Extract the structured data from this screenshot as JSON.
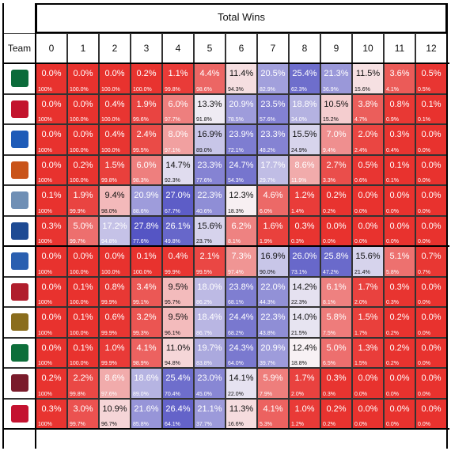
{
  "chart_data": {
    "type": "heatmap",
    "title": "Total Wins",
    "row_header": "Team",
    "columns": [
      "0",
      "1",
      "2",
      "3",
      "4",
      "5",
      "6",
      "7",
      "8",
      "9",
      "10",
      "11",
      "12"
    ],
    "teams": [
      {
        "logo": "ohio-logo-icon",
        "pct": [
          "0.0%",
          "0.0%",
          "0.0%",
          "0.2%",
          "1.1%",
          "4.4%",
          "11.4%",
          "20.5%",
          "25.4%",
          "21.3%",
          "11.5%",
          "3.6%",
          "0.5%"
        ],
        "cum": [
          "100%",
          "100.0%",
          "100.0%",
          "100.0%",
          "99.8%",
          "98.6%",
          "94.3%",
          "82.9%",
          "62.3%",
          "36.9%",
          "15.6%",
          "4.1%",
          "0.5%"
        ]
      },
      {
        "logo": "miami-logo-icon",
        "pct": [
          "0.0%",
          "0.0%",
          "0.4%",
          "1.9%",
          "6.0%",
          "13.3%",
          "20.9%",
          "23.5%",
          "18.8%",
          "10.5%",
          "3.8%",
          "0.8%",
          "0.1%"
        ],
        "cum": [
          "100%",
          "100.0%",
          "100.0%",
          "99.6%",
          "97.7%",
          "91.8%",
          "78.5%",
          "57.6%",
          "34.0%",
          "15.2%",
          "4.7%",
          "0.9%",
          "0.1%"
        ]
      },
      {
        "logo": "buffalo-logo-icon",
        "pct": [
          "0.0%",
          "0.0%",
          "0.4%",
          "2.4%",
          "8.0%",
          "16.9%",
          "23.9%",
          "23.3%",
          "15.5%",
          "7.0%",
          "2.0%",
          "0.3%",
          "0.0%"
        ],
        "cum": [
          "100%",
          "100.0%",
          "100.0%",
          "99.5%",
          "97.1%",
          "89.0%",
          "72.1%",
          "48.2%",
          "24.9%",
          "9.4%",
          "2.4%",
          "0.4%",
          "0.0%"
        ]
      },
      {
        "logo": "bowling-green-logo-icon",
        "pct": [
          "0.0%",
          "0.2%",
          "1.5%",
          "6.0%",
          "14.7%",
          "23.3%",
          "24.7%",
          "17.7%",
          "8.6%",
          "2.7%",
          "0.5%",
          "0.1%",
          "0.0%"
        ],
        "cum": [
          "100%",
          "100.0%",
          "99.8%",
          "98.3%",
          "92.3%",
          "77.6%",
          "54.3%",
          "29.7%",
          "11.9%",
          "3.3%",
          "0.6%",
          "0.1%",
          "0.0%"
        ]
      },
      {
        "logo": "akron-logo-icon",
        "pct": [
          "0.1%",
          "1.9%",
          "9.4%",
          "20.9%",
          "27.0%",
          "22.3%",
          "12.3%",
          "4.6%",
          "1.2%",
          "0.2%",
          "0.0%",
          "0.0%",
          "0.0%"
        ],
        "cum": [
          "100%",
          "99.9%",
          "98.0%",
          "88.6%",
          "67.7%",
          "40.6%",
          "18.3%",
          "6.0%",
          "1.4%",
          "0.2%",
          "0.0%",
          "0.0%",
          "0.0%"
        ]
      },
      {
        "logo": "kent-state-logo-icon",
        "pct": [
          "0.3%",
          "5.0%",
          "17.2%",
          "27.8%",
          "26.1%",
          "15.6%",
          "6.2%",
          "1.6%",
          "0.3%",
          "0.0%",
          "0.0%",
          "0.0%",
          "0.0%"
        ],
        "cum": [
          "100%",
          "99.7%",
          "94.8%",
          "77.6%",
          "49.8%",
          "23.7%",
          "8.1%",
          "1.9%",
          "0.3%",
          "0.0%",
          "0.0%",
          "0.0%",
          "0.0%"
        ]
      },
      {
        "logo": "toledo-logo-icon",
        "pct": [
          "0.0%",
          "0.0%",
          "0.0%",
          "0.1%",
          "0.4%",
          "2.1%",
          "7.3%",
          "16.9%",
          "26.0%",
          "25.8%",
          "15.6%",
          "5.1%",
          "0.7%"
        ],
        "cum": [
          "100%",
          "100.0%",
          "100.0%",
          "100.0%",
          "99.9%",
          "99.5%",
          "97.4%",
          "90.0%",
          "73.1%",
          "47.2%",
          "21.4%",
          "5.8%",
          "0.7%"
        ]
      },
      {
        "logo": "northern-illinois-logo-icon",
        "pct": [
          "0.0%",
          "0.1%",
          "0.8%",
          "3.4%",
          "9.5%",
          "18.0%",
          "23.8%",
          "22.0%",
          "14.2%",
          "6.1%",
          "1.7%",
          "0.3%",
          "0.0%"
        ],
        "cum": [
          "100%",
          "100.0%",
          "99.9%",
          "99.1%",
          "95.7%",
          "86.2%",
          "68.1%",
          "44.3%",
          "22.3%",
          "8.1%",
          "2.0%",
          "0.3%",
          "0.0%"
        ]
      },
      {
        "logo": "western-michigan-logo-icon",
        "pct": [
          "0.0%",
          "0.1%",
          "0.6%",
          "3.2%",
          "9.5%",
          "18.4%",
          "24.4%",
          "22.3%",
          "14.0%",
          "5.8%",
          "1.5%",
          "0.2%",
          "0.0%"
        ],
        "cum": [
          "100%",
          "100.0%",
          "99.9%",
          "99.3%",
          "96.1%",
          "86.7%",
          "68.2%",
          "43.8%",
          "21.5%",
          "7.5%",
          "1.7%",
          "0.2%",
          "0.0%"
        ]
      },
      {
        "logo": "eastern-michigan-logo-icon",
        "pct": [
          "0.0%",
          "0.1%",
          "1.0%",
          "4.1%",
          "11.0%",
          "19.7%",
          "24.3%",
          "20.9%",
          "12.4%",
          "5.0%",
          "1.3%",
          "0.2%",
          "0.0%"
        ],
        "cum": [
          "100%",
          "100.0%",
          "99.9%",
          "98.9%",
          "94.8%",
          "83.8%",
          "64.0%",
          "39.7%",
          "18.8%",
          "6.5%",
          "1.5%",
          "0.2%",
          "0.0%"
        ]
      },
      {
        "logo": "central-michigan-logo-icon",
        "pct": [
          "0.2%",
          "2.2%",
          "8.6%",
          "18.6%",
          "25.4%",
          "23.0%",
          "14.1%",
          "5.9%",
          "1.7%",
          "0.3%",
          "0.0%",
          "0.0%",
          "0.0%"
        ],
        "cum": [
          "100%",
          "99.8%",
          "97.6%",
          "89.0%",
          "70.4%",
          "45.0%",
          "22.0%",
          "7.9%",
          "2.0%",
          "0.3%",
          "0.0%",
          "0.0%",
          "0.0%"
        ]
      },
      {
        "logo": "ball-state-logo-icon",
        "pct": [
          "0.3%",
          "3.0%",
          "10.9%",
          "21.6%",
          "26.4%",
          "21.1%",
          "11.3%",
          "4.1%",
          "1.0%",
          "0.2%",
          "0.0%",
          "0.0%",
          "0.0%"
        ],
        "cum": [
          "100%",
          "99.7%",
          "96.7%",
          "85.8%",
          "64.1%",
          "37.7%",
          "16.6%",
          "5.3%",
          "1.2%",
          "0.2%",
          "0.0%",
          "0.0%",
          "0.0%"
        ]
      }
    ],
    "colors": {
      "low": "#e8322e",
      "mid": "#f7f3f6",
      "high": "#5555c4"
    }
  }
}
